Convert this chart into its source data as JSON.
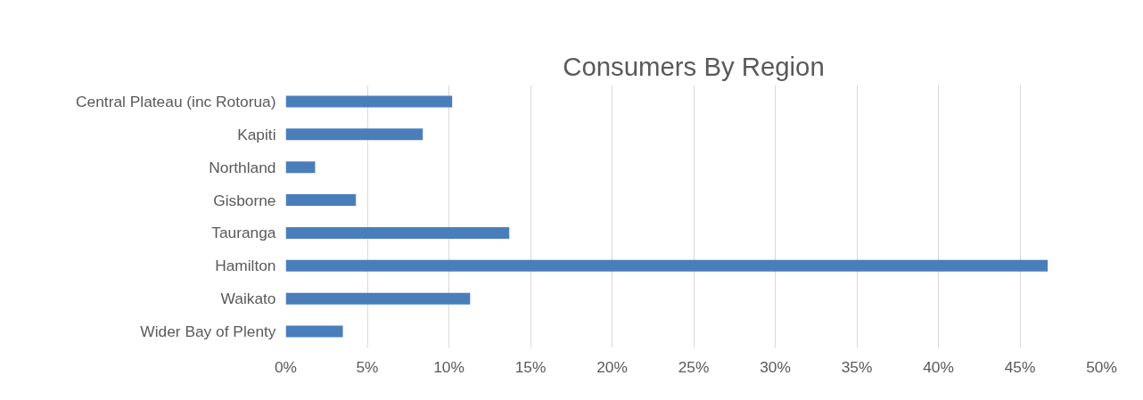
{
  "chart_data": {
    "type": "bar",
    "orientation": "horizontal",
    "title": "Consumers By Region",
    "categories": [
      "Central Plateau (inc Rotorua)",
      "Kapiti",
      "Northland",
      "Gisborne",
      "Tauranga",
      "Hamilton",
      "Waikato",
      "Wider Bay of Plenty"
    ],
    "values": [
      10.2,
      8.4,
      1.8,
      4.3,
      13.7,
      46.7,
      11.3,
      3.5
    ],
    "color": "#4a7ebb",
    "xlim": [
      0,
      50
    ],
    "xticks": [
      {
        "value": 0,
        "label": "0%"
      },
      {
        "value": 5,
        "label": "5%"
      },
      {
        "value": 10,
        "label": "10%"
      },
      {
        "value": 15,
        "label": "15%"
      },
      {
        "value": 20,
        "label": "20%"
      },
      {
        "value": 25,
        "label": "25%"
      },
      {
        "value": 30,
        "label": "30%"
      },
      {
        "value": 35,
        "label": "35%"
      },
      {
        "value": 40,
        "label": "40%"
      },
      {
        "value": 45,
        "label": "45%"
      },
      {
        "value": 50,
        "label": "50%"
      }
    ],
    "grid": "x"
  }
}
